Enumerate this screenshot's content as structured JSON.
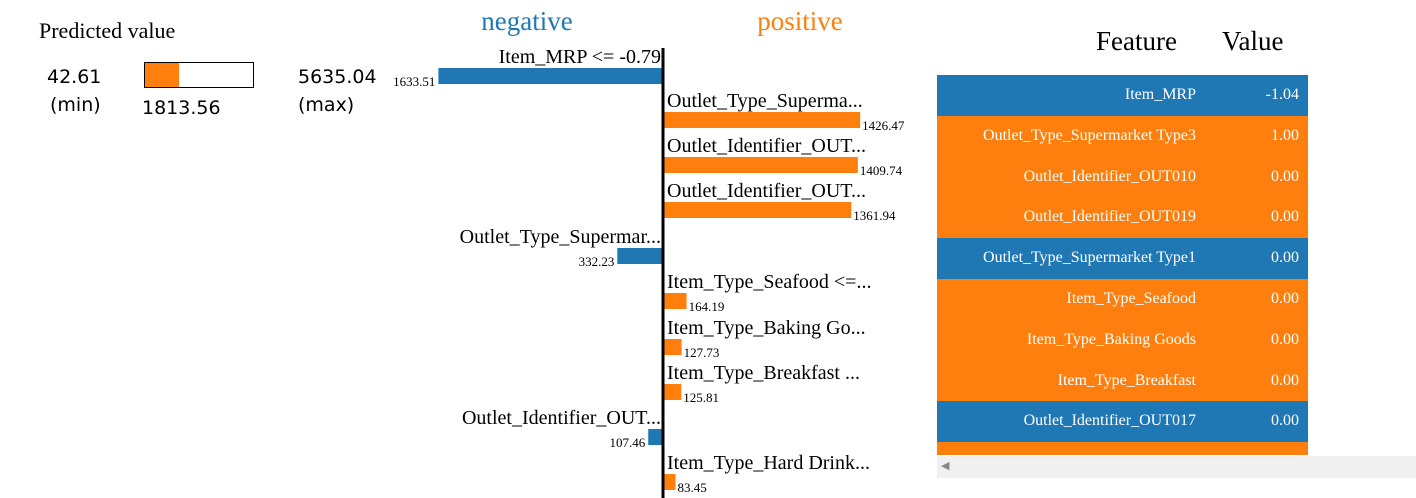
{
  "predicted": {
    "title": "Predicted value",
    "min_value": "42.61",
    "min_label": "(min)",
    "value": "1813.56",
    "max_value": "5635.04",
    "max_label": "(max)",
    "min_num": 42.61,
    "value_num": 1813.56,
    "max_num": 5635.04
  },
  "colors": {
    "negative": "#1f77b4",
    "positive": "#ff7f0e"
  },
  "chart_data": {
    "type": "bar",
    "headers": {
      "negative": "negative",
      "positive": "positive"
    },
    "bars": [
      {
        "label": "Item_MRP <= -0.79",
        "value": -1633.51,
        "value_label": "1633.51"
      },
      {
        "label": "Outlet_Type_Superma...",
        "value": 1426.47,
        "value_label": "1426.47"
      },
      {
        "label": "Outlet_Identifier_OUT...",
        "value": 1409.74,
        "value_label": "1409.74"
      },
      {
        "label": "Outlet_Identifier_OUT...",
        "value": 1361.94,
        "value_label": "1361.94"
      },
      {
        "label": "Outlet_Type_Supermar...",
        "value": -332.23,
        "value_label": "332.23"
      },
      {
        "label": "Item_Type_Seafood <=...",
        "value": 164.19,
        "value_label": "164.19"
      },
      {
        "label": "Item_Type_Baking Go...",
        "value": 127.73,
        "value_label": "127.73"
      },
      {
        "label": "Item_Type_Breakfast ...",
        "value": 125.81,
        "value_label": "125.81"
      },
      {
        "label": "Outlet_Identifier_OUT...",
        "value": -107.46,
        "value_label": "107.46"
      },
      {
        "label": "Item_Type_Hard Drink...",
        "value": 83.45,
        "value_label": "83.45"
      }
    ]
  },
  "table": {
    "header_feature": "Feature",
    "header_value": "Value",
    "rows": [
      {
        "feature": "Item_MRP",
        "value": "-1.04",
        "sign": "negative"
      },
      {
        "feature": "Outlet_Type_Supermarket Type3",
        "value": "1.00",
        "sign": "positive"
      },
      {
        "feature": "Outlet_Identifier_OUT010",
        "value": "0.00",
        "sign": "positive"
      },
      {
        "feature": "Outlet_Identifier_OUT019",
        "value": "0.00",
        "sign": "positive"
      },
      {
        "feature": "Outlet_Type_Supermarket Type1",
        "value": "0.00",
        "sign": "negative"
      },
      {
        "feature": "Item_Type_Seafood",
        "value": "0.00",
        "sign": "positive"
      },
      {
        "feature": "Item_Type_Baking Goods",
        "value": "0.00",
        "sign": "positive"
      },
      {
        "feature": "Item_Type_Breakfast",
        "value": "0.00",
        "sign": "positive"
      },
      {
        "feature": "Outlet_Identifier_OUT017",
        "value": "0.00",
        "sign": "negative"
      },
      {
        "feature": "",
        "value": "",
        "sign": "positive"
      }
    ]
  },
  "scrollbar": {
    "left_arrow": "◀"
  }
}
